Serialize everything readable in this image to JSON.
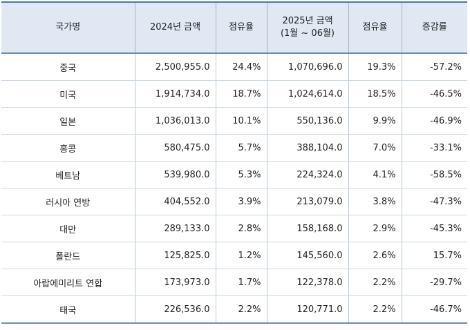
{
  "table": {
    "headers": {
      "country": "국가명",
      "amount_2024": "2024년 금액",
      "share_2024": "점유율",
      "amount_2025_line1": "2025년 금액",
      "amount_2025_line2": "(1월 ~ 06월)",
      "share_2025": "점유율",
      "change_rate": "증감률"
    },
    "rows": [
      {
        "country": "중국",
        "amount_2024": "2,500,955.0",
        "share_2024": "24.4%",
        "amount_2025": "1,070,696.0",
        "share_2025": "19.3%",
        "change_rate": "-57.2%"
      },
      {
        "country": "미국",
        "amount_2024": "1,914,734.0",
        "share_2024": "18.7%",
        "amount_2025": "1,024,614.0",
        "share_2025": "18.5%",
        "change_rate": "-46.5%"
      },
      {
        "country": "일본",
        "amount_2024": "1,036,013.0",
        "share_2024": "10.1%",
        "amount_2025": "550,136.0",
        "share_2025": "9.9%",
        "change_rate": "-46.9%"
      },
      {
        "country": "홍콩",
        "amount_2024": "580,475.0",
        "share_2024": "5.7%",
        "amount_2025": "388,104.0",
        "share_2025": "7.0%",
        "change_rate": "-33.1%"
      },
      {
        "country": "베트남",
        "amount_2024": "539,980.0",
        "share_2024": "5.3%",
        "amount_2025": "224,324.0",
        "share_2025": "4.1%",
        "change_rate": "-58.5%"
      },
      {
        "country": "러시아 연방",
        "amount_2024": "404,552.0",
        "share_2024": "3.9%",
        "amount_2025": "213,079.0",
        "share_2025": "3.8%",
        "change_rate": "-47.3%"
      },
      {
        "country": "대만",
        "amount_2024": "289,133.0",
        "share_2024": "2.8%",
        "amount_2025": "158,168.0",
        "share_2025": "2.9%",
        "change_rate": "-45.3%"
      },
      {
        "country": "폴란드",
        "amount_2024": "125,825.0",
        "share_2024": "1.2%",
        "amount_2025": "145,560.0",
        "share_2025": "2.6%",
        "change_rate": "15.7%"
      },
      {
        "country": "아랍에미리트 연합",
        "amount_2024": "173,973.0",
        "share_2024": "1.7%",
        "amount_2025": "122,378.0",
        "share_2025": "2.2%",
        "change_rate": "-29.7%"
      },
      {
        "country": "태국",
        "amount_2024": "226,536.0",
        "share_2024": "2.2%",
        "amount_2025": "120,771.0",
        "share_2025": "2.2%",
        "change_rate": "-46.7%"
      }
    ]
  }
}
